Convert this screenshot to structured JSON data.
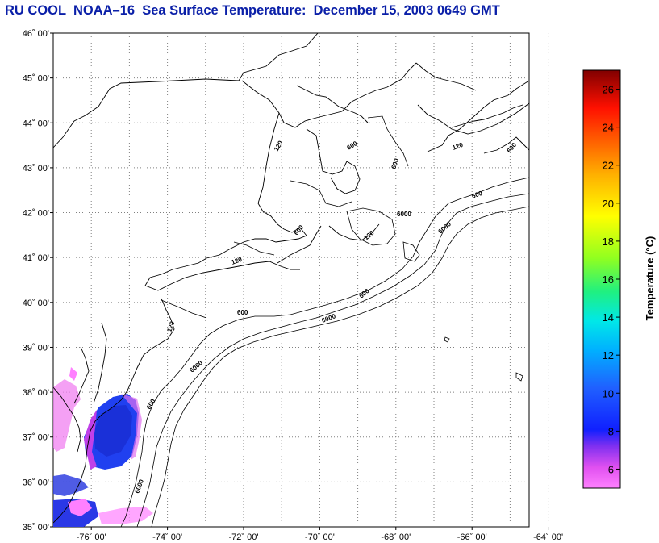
{
  "title": "RU COOL  NOAA–16  Sea Surface Temperature:  December 15, 2003 0649 GMT",
  "map": {
    "lat_labels": [
      "46˚ 00'",
      "45˚ 00'",
      "44˚ 00'",
      "43˚ 00'",
      "42˚ 00'",
      "41˚ 00'",
      "40˚ 00'",
      "39˚ 00'",
      "38˚ 00'",
      "37˚ 00'",
      "36˚ 00'",
      "35˚ 00'"
    ],
    "lon_labels": [
      "-76˚ 00'",
      "-74˚ 00'",
      "-72˚ 00'",
      "-70˚ 00'",
      "-68˚ 00'",
      "-66˚ 00'",
      "-64˚ 00'"
    ],
    "lat_range": [
      35,
      46
    ],
    "lon_range": [
      -77,
      -64.5
    ],
    "grid": "dotted",
    "isobath_labels": [
      "120",
      "600",
      "6000"
    ]
  },
  "colorbar": {
    "title": "Temperature (°C)",
    "ticks": [
      "26",
      "24",
      "22",
      "20",
      "18",
      "16",
      "14",
      "12",
      "10",
      "8",
      "6"
    ],
    "range": [
      5,
      27
    ],
    "colors": [
      "#ff80ff",
      "#d040e0",
      "#1020ff",
      "#3050ff",
      "#00a0ff",
      "#00e0e0",
      "#30f060",
      "#a0ff20",
      "#ffff00",
      "#ffc000",
      "#ff7000",
      "#ff2000",
      "#d00000",
      "#800000"
    ]
  }
}
